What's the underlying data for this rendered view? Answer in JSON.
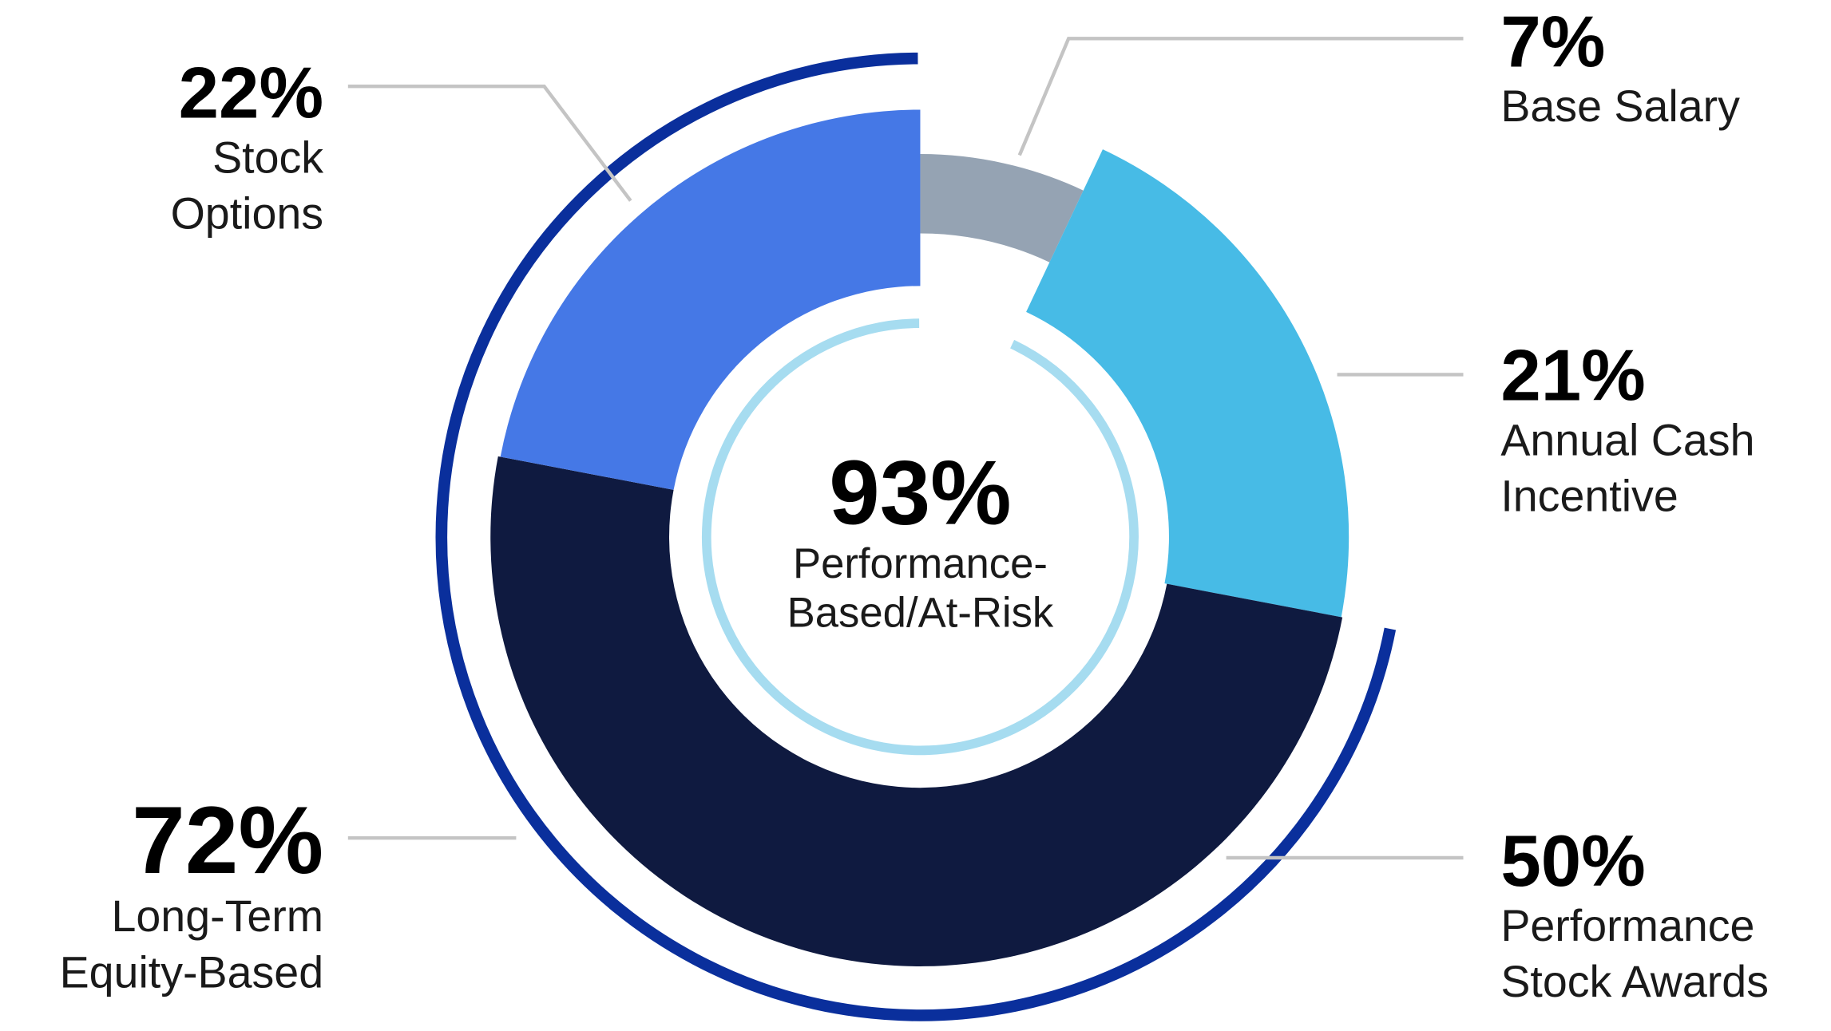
{
  "chart_data": {
    "type": "donut",
    "segments": [
      {
        "name": "Base Salary",
        "value": 7,
        "value_label": "7%",
        "color": "#95a3b3"
      },
      {
        "name": "Annual Cash Incentive",
        "value": 21,
        "value_label": "21%",
        "color": "#47bbe6"
      },
      {
        "name": "Performance Stock Awards",
        "value": 50,
        "value_label": "50%",
        "color": "#0f1a40"
      },
      {
        "name": "Stock Options",
        "value": 22,
        "value_label": "22%",
        "color": "#4578e6"
      }
    ],
    "groups": [
      {
        "name": "Performance-Based/At-Risk",
        "value": 93,
        "value_label": "93%",
        "color": "#a6dcf0"
      },
      {
        "name": "Long-Term Equity-Based",
        "value": 72,
        "value_label": "72%",
        "color": "#0a2f9c"
      }
    ]
  }
}
